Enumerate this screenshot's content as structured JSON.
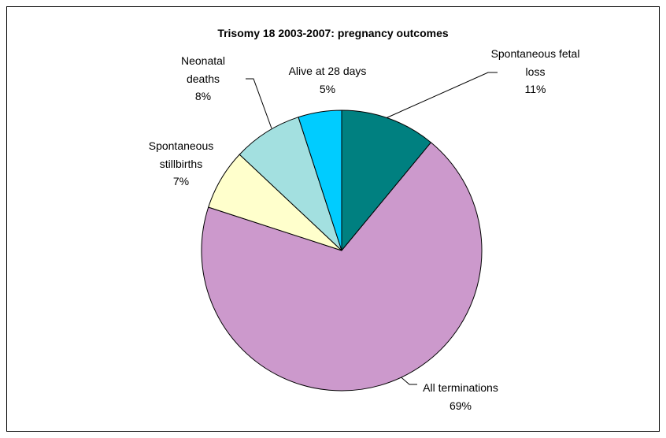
{
  "chart_data": {
    "type": "pie",
    "title": "Trisomy 18 2003-2007: pregnancy outcomes",
    "categories": [
      "Spontaneous fetal loss",
      "All terminations",
      "Spontaneous stillbirths",
      "Neonatal deaths",
      "Alive at 28 days"
    ],
    "values": [
      11,
      69,
      7,
      8,
      5
    ],
    "value_labels": [
      "11%",
      "69%",
      "7%",
      "8%",
      "5%"
    ],
    "colors": [
      "#008080",
      "#cc99cc",
      "#ffffcc",
      "#a3e0e0",
      "#00ccff"
    ]
  }
}
